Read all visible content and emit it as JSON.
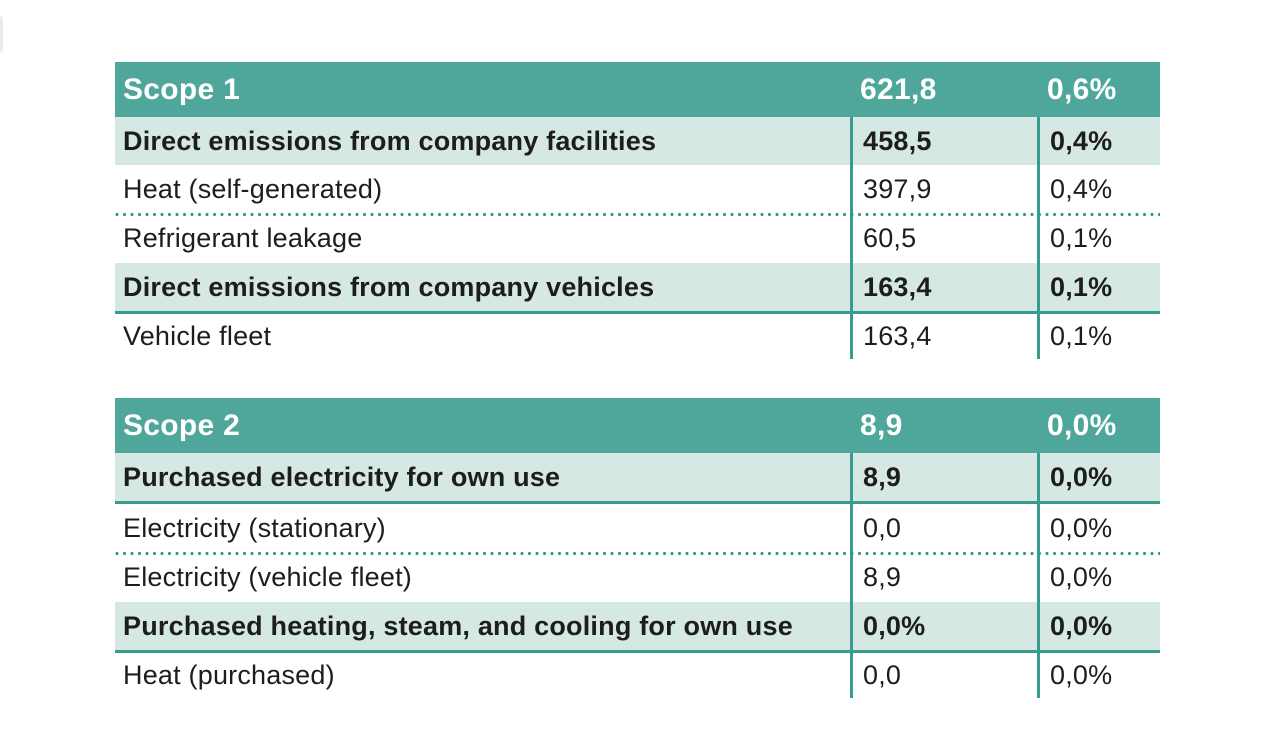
{
  "colors": {
    "header_bg": "#4FA79B",
    "emphasis_row_bg": "#D5E8E3",
    "separator_line": "#379B8E",
    "dotted_line": "#2F9A8C",
    "text": "#1D1D1B",
    "header_text": "#FFFFFF"
  },
  "tables": [
    {
      "name": "scope-1",
      "header": {
        "label": "Scope 1",
        "value": "621,8",
        "percent": "0,6%"
      },
      "rows": [
        {
          "label": "Direct emissions from company facilities",
          "value": "458,5",
          "percent": "0,4%",
          "emphasis": true,
          "separator": "none"
        },
        {
          "label": "Heat (self-generated)",
          "value": "397,9",
          "percent": "0,4%",
          "emphasis": false,
          "separator": "dotted"
        },
        {
          "label": "Refrigerant leakage",
          "value": "60,5",
          "percent": "0,1%",
          "emphasis": false,
          "separator": "none"
        },
        {
          "label": "Direct emissions from company vehicles",
          "value": "163,4",
          "percent": "0,1%",
          "emphasis": true,
          "separator": "solid"
        },
        {
          "label": "Vehicle fleet",
          "value": "163,4",
          "percent": "0,1%",
          "emphasis": false,
          "separator": "none"
        }
      ]
    },
    {
      "name": "scope-2",
      "header": {
        "label": "Scope 2",
        "value": "8,9",
        "percent": "0,0%"
      },
      "rows": [
        {
          "label": "Purchased electricity for own use",
          "value": "8,9",
          "percent": "0,0%",
          "emphasis": true,
          "separator": "solid"
        },
        {
          "label": "Electricity (stationary)",
          "value": "0,0",
          "percent": "0,0%",
          "emphasis": false,
          "separator": "dotted"
        },
        {
          "label": "Electricity (vehicle fleet)",
          "value": "8,9",
          "percent": "0,0%",
          "emphasis": false,
          "separator": "none"
        },
        {
          "label": "Purchased heating, steam, and cooling for own use",
          "value": "0,0%",
          "percent": "0,0%",
          "emphasis": true,
          "separator": "solid"
        },
        {
          "label": "Heat (purchased)",
          "value": "0,0",
          "percent": "0,0%",
          "emphasis": false,
          "separator": "none"
        }
      ]
    }
  ]
}
